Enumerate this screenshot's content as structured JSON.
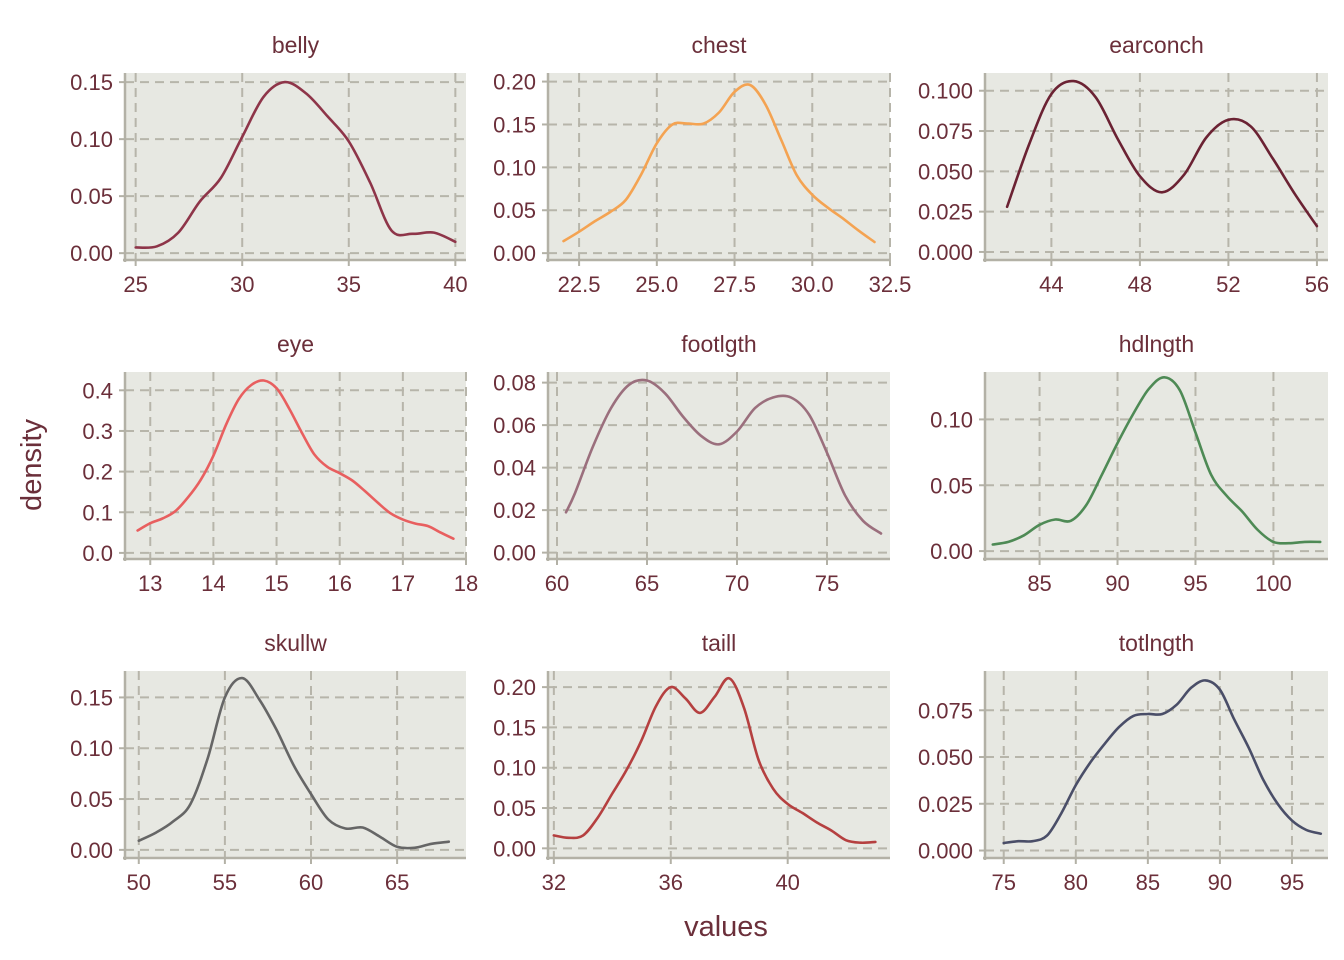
{
  "chart_data": {
    "type": "line",
    "xlabel": "values",
    "ylabel": "density",
    "grid": true,
    "panels": [
      {
        "name": "belly",
        "color": "#8e3549",
        "xlim": [
          24.5,
          40.5
        ],
        "ylim": [
          -0.006,
          0.158
        ],
        "xticks": [
          25,
          30,
          35,
          40
        ],
        "xtick_labels": [
          "25",
          "30",
          "35",
          "40"
        ],
        "yticks": [
          0,
          0.05,
          0.1,
          0.15
        ],
        "ytick_labels": [
          "0.00",
          "0.05",
          "0.10",
          "0.15"
        ],
        "x": [
          25,
          26,
          27,
          28,
          29,
          30,
          31,
          32,
          33,
          34,
          35,
          36,
          37,
          38,
          39,
          40
        ],
        "y": [
          0.005,
          0.006,
          0.018,
          0.045,
          0.066,
          0.102,
          0.137,
          0.15,
          0.14,
          0.12,
          0.098,
          0.062,
          0.02,
          0.017,
          0.018,
          0.01
        ]
      },
      {
        "name": "chest",
        "color": "#f4a352",
        "xlim": [
          21.5,
          32.5
        ],
        "ylim": [
          -0.008,
          0.21
        ],
        "xticks": [
          22.5,
          25.0,
          27.5,
          30.0,
          32.5
        ],
        "xtick_labels": [
          "22.5",
          "25.0",
          "27.5",
          "30.0",
          "32.5"
        ],
        "yticks": [
          0,
          0.05,
          0.1,
          0.15,
          0.2
        ],
        "ytick_labels": [
          "0.00",
          "0.05",
          "0.10",
          "0.15",
          "0.20"
        ],
        "x": [
          22.0,
          22.5,
          23.0,
          23.5,
          24.0,
          24.5,
          25.0,
          25.5,
          26.0,
          26.5,
          27.0,
          27.5,
          28.0,
          28.5,
          29.0,
          29.5,
          30.0,
          30.5,
          31.0,
          31.5,
          32.0
        ],
        "y": [
          0.014,
          0.025,
          0.037,
          0.048,
          0.062,
          0.092,
          0.128,
          0.15,
          0.151,
          0.151,
          0.164,
          0.188,
          0.196,
          0.173,
          0.132,
          0.091,
          0.068,
          0.053,
          0.04,
          0.026,
          0.013
        ]
      },
      {
        "name": "earconch",
        "color": "#6b2233",
        "xlim": [
          41.0,
          56.5
        ],
        "ylim": [
          -0.005,
          0.111
        ],
        "xticks": [
          44,
          48,
          52,
          56
        ],
        "xtick_labels": [
          "44",
          "48",
          "52",
          "56"
        ],
        "yticks": [
          0,
          0.025,
          0.05,
          0.075,
          0.1
        ],
        "ytick_labels": [
          "0.000",
          "0.025",
          "0.050",
          "0.075",
          "0.100"
        ],
        "x": [
          42,
          43,
          44,
          45,
          46,
          47,
          48,
          49,
          50,
          51,
          52,
          53,
          54,
          55,
          56
        ],
        "y": [
          0.028,
          0.067,
          0.098,
          0.106,
          0.096,
          0.07,
          0.047,
          0.037,
          0.048,
          0.071,
          0.082,
          0.078,
          0.058,
          0.036,
          0.016
        ]
      },
      {
        "name": "eye",
        "color": "#e85f5f",
        "xlim": [
          12.6,
          18.0
        ],
        "ylim": [
          -0.015,
          0.445
        ],
        "xticks": [
          13,
          14,
          15,
          16,
          17,
          18
        ],
        "xtick_labels": [
          "13",
          "14",
          "15",
          "16",
          "17",
          "18"
        ],
        "yticks": [
          0,
          0.1,
          0.2,
          0.3,
          0.4
        ],
        "ytick_labels": [
          "0.0",
          "0.1",
          "0.2",
          "0.3",
          "0.4"
        ],
        "x": [
          12.8,
          13.0,
          13.2,
          13.4,
          13.6,
          13.8,
          14.0,
          14.2,
          14.4,
          14.6,
          14.8,
          15.0,
          15.2,
          15.4,
          15.6,
          15.8,
          16.0,
          16.2,
          16.4,
          16.6,
          16.8,
          17.0,
          17.2,
          17.4,
          17.6,
          17.8
        ],
        "y": [
          0.055,
          0.073,
          0.085,
          0.103,
          0.137,
          0.18,
          0.239,
          0.315,
          0.378,
          0.413,
          0.424,
          0.405,
          0.355,
          0.296,
          0.242,
          0.212,
          0.196,
          0.178,
          0.152,
          0.124,
          0.098,
          0.082,
          0.072,
          0.066,
          0.05,
          0.035
        ]
      },
      {
        "name": "footlgth",
        "color": "#9b6f7d",
        "xlim": [
          59.5,
          78.5
        ],
        "ylim": [
          -0.003,
          0.085
        ],
        "xticks": [
          60,
          65,
          70,
          75
        ],
        "xtick_labels": [
          "60",
          "65",
          "70",
          "75"
        ],
        "yticks": [
          0,
          0.02,
          0.04,
          0.06,
          0.08
        ],
        "ytick_labels": [
          "0.00",
          "0.02",
          "0.04",
          "0.06",
          "0.08"
        ],
        "x": [
          60.5,
          61,
          62,
          63,
          64,
          65,
          66,
          67,
          68,
          69,
          70,
          71,
          72,
          73,
          74,
          75,
          76,
          77,
          78
        ],
        "y": [
          0.019,
          0.028,
          0.05,
          0.068,
          0.079,
          0.081,
          0.075,
          0.064,
          0.055,
          0.051,
          0.057,
          0.068,
          0.073,
          0.073,
          0.065,
          0.047,
          0.027,
          0.015,
          0.009
        ]
      },
      {
        "name": "hdlngth",
        "color": "#4e8a55",
        "xlim": [
          81.5,
          103.5
        ],
        "ylim": [
          -0.006,
          0.136
        ],
        "xticks": [
          85,
          90,
          95,
          100
        ],
        "xtick_labels": [
          "85",
          "90",
          "95",
          "100"
        ],
        "yticks": [
          0,
          0.05,
          0.1
        ],
        "ytick_labels": [
          "0.00",
          "0.05",
          "0.10"
        ],
        "x": [
          82,
          83,
          84,
          85,
          86,
          87,
          88,
          89,
          90,
          91,
          92,
          93,
          94,
          95,
          96,
          97,
          98,
          99,
          100,
          101,
          102,
          103
        ],
        "y": [
          0.005,
          0.007,
          0.012,
          0.02,
          0.024,
          0.023,
          0.035,
          0.058,
          0.082,
          0.104,
          0.123,
          0.132,
          0.122,
          0.09,
          0.058,
          0.042,
          0.03,
          0.016,
          0.007,
          0.006,
          0.007,
          0.007
        ]
      },
      {
        "name": "skullw",
        "color": "#666666",
        "xlim": [
          49.2,
          69.0
        ],
        "ylim": [
          -0.008,
          0.176
        ],
        "xticks": [
          50,
          55,
          60,
          65
        ],
        "xtick_labels": [
          "50",
          "55",
          "60",
          "65"
        ],
        "yticks": [
          0,
          0.05,
          0.1,
          0.15
        ],
        "ytick_labels": [
          "0.00",
          "0.05",
          "0.10",
          "0.15"
        ],
        "x": [
          50,
          51,
          52,
          53,
          54,
          55,
          56,
          57,
          58,
          59,
          60,
          61,
          62,
          63,
          64,
          65,
          66,
          67,
          68
        ],
        "y": [
          0.009,
          0.017,
          0.028,
          0.045,
          0.09,
          0.15,
          0.169,
          0.148,
          0.118,
          0.083,
          0.055,
          0.03,
          0.021,
          0.022,
          0.013,
          0.003,
          0.002,
          0.006,
          0.008
        ]
      },
      {
        "name": "taill",
        "color": "#b54040",
        "xlim": [
          31.8,
          43.5
        ],
        "ylim": [
          -0.012,
          0.22
        ],
        "xticks": [
          32,
          36,
          40
        ],
        "xtick_labels": [
          "32",
          "36",
          "40"
        ],
        "yticks": [
          0,
          0.05,
          0.1,
          0.15,
          0.2
        ],
        "ytick_labels": [
          "0.00",
          "0.05",
          "0.10",
          "0.15",
          "0.20"
        ],
        "x": [
          32.0,
          32.5,
          33.0,
          33.5,
          34.0,
          34.5,
          35.0,
          35.5,
          36.0,
          36.5,
          37.0,
          37.5,
          38.0,
          38.5,
          39.0,
          39.5,
          40.0,
          40.5,
          41.0,
          41.5,
          42.0,
          42.5,
          43.0
        ],
        "y": [
          0.016,
          0.013,
          0.016,
          0.038,
          0.068,
          0.098,
          0.134,
          0.177,
          0.2,
          0.186,
          0.168,
          0.188,
          0.211,
          0.175,
          0.11,
          0.074,
          0.055,
          0.044,
          0.032,
          0.022,
          0.01,
          0.007,
          0.008
        ]
      },
      {
        "name": "totlngth",
        "color": "#4a4e68",
        "xlim": [
          73.7,
          97.5
        ],
        "ylim": [
          -0.004,
          0.096
        ],
        "xticks": [
          75,
          80,
          85,
          90,
          95
        ],
        "xtick_labels": [
          "75",
          "80",
          "85",
          "90",
          "95"
        ],
        "yticks": [
          0,
          0.025,
          0.05,
          0.075
        ],
        "ytick_labels": [
          "0.000",
          "0.025",
          "0.050",
          "0.075"
        ],
        "x": [
          75,
          76,
          77,
          78,
          79,
          80,
          81,
          82,
          83,
          84,
          85,
          86,
          87,
          88,
          89,
          90,
          91,
          92,
          93,
          94,
          95,
          96,
          97
        ],
        "y": [
          0.004,
          0.005,
          0.005,
          0.008,
          0.02,
          0.035,
          0.047,
          0.057,
          0.066,
          0.072,
          0.073,
          0.073,
          0.078,
          0.087,
          0.091,
          0.086,
          0.07,
          0.055,
          0.038,
          0.025,
          0.016,
          0.011,
          0.009
        ]
      }
    ]
  },
  "colors": {
    "panel_bg": "#e7e8e2",
    "grid": "#b7b5aa",
    "axis": "#b3b1a6",
    "text": "#6b2f3a"
  }
}
